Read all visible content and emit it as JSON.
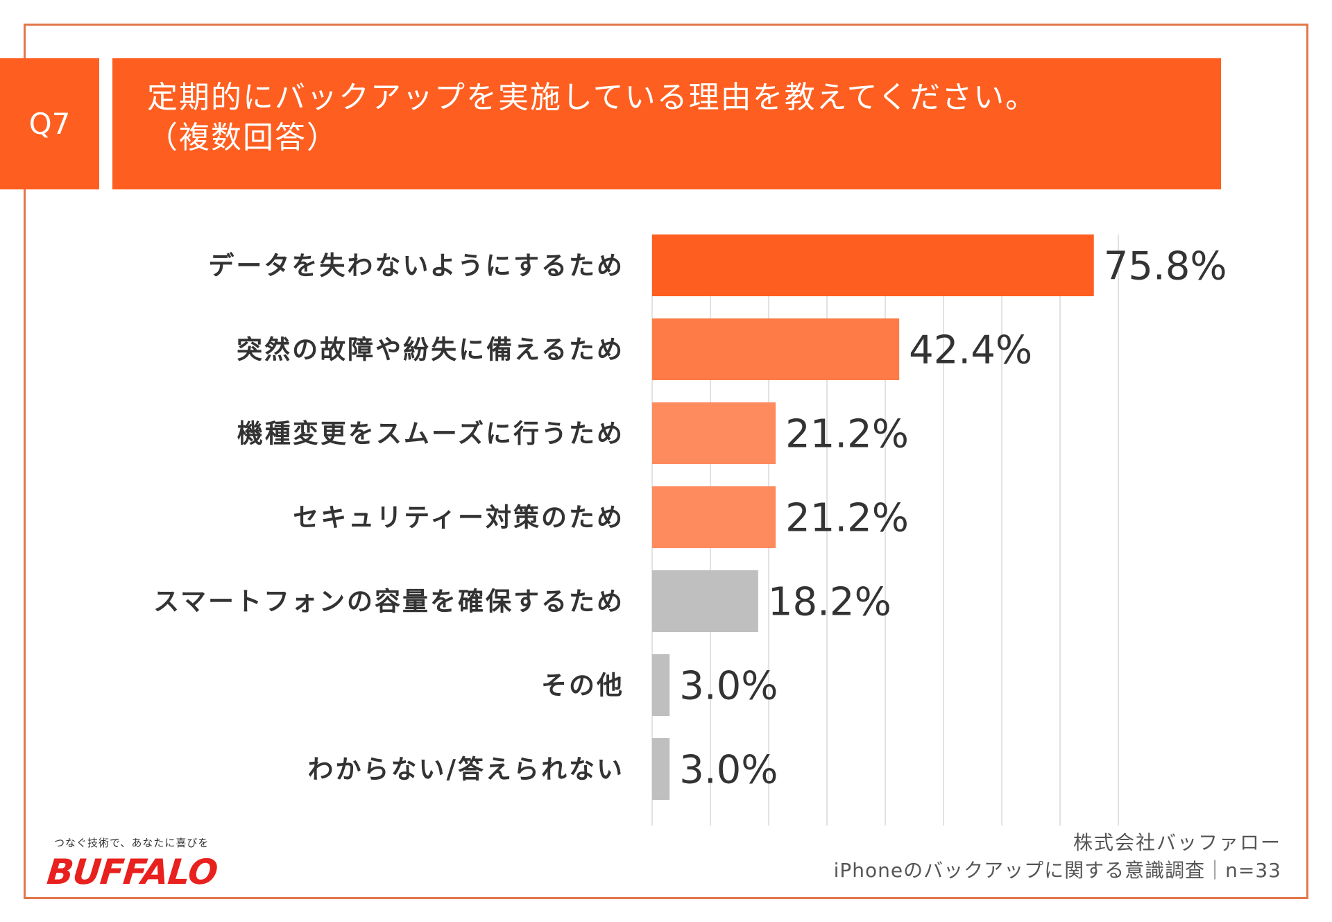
{
  "header": {
    "q_number": "Q7",
    "question": "定期的にバックアップを実施している理由を教えてください。",
    "question_note": "（複数回答）"
  },
  "chart_data": {
    "type": "bar",
    "orientation": "horizontal",
    "categories": [
      "データを失わないようにするため",
      "突然の故障や紛失に備えるため",
      "機種変更をスムーズに行うため",
      "セキュリティー対策のため",
      "スマートフォンの容量を確保するため",
      "その他",
      "わからない/答えられない"
    ],
    "values": [
      75.8,
      42.4,
      21.2,
      21.2,
      18.2,
      3.0,
      3.0
    ],
    "value_labels": [
      "75.8%",
      "42.4%",
      "21.2%",
      "21.2%",
      "18.2%",
      "3.0%",
      "3.0%"
    ],
    "bar_colors": [
      "#fe5e1f",
      "#fe7b47",
      "#fe8b5e",
      "#fe8b5e",
      "#bfbfbf",
      "#bfbfbf",
      "#bfbfbf"
    ],
    "xlim": [
      0,
      80
    ],
    "grid": true,
    "gridline_step": 10
  },
  "branding": {
    "tagline": "つなぐ技術で、あなたに喜びを",
    "logo": "BUFFALO"
  },
  "source": {
    "company": "株式会社バッファロー",
    "survey": "iPhoneのバックアップに関する意識調査｜n=33"
  },
  "colors": {
    "accent": "#fe5e1f",
    "frame": "#e3764a"
  }
}
